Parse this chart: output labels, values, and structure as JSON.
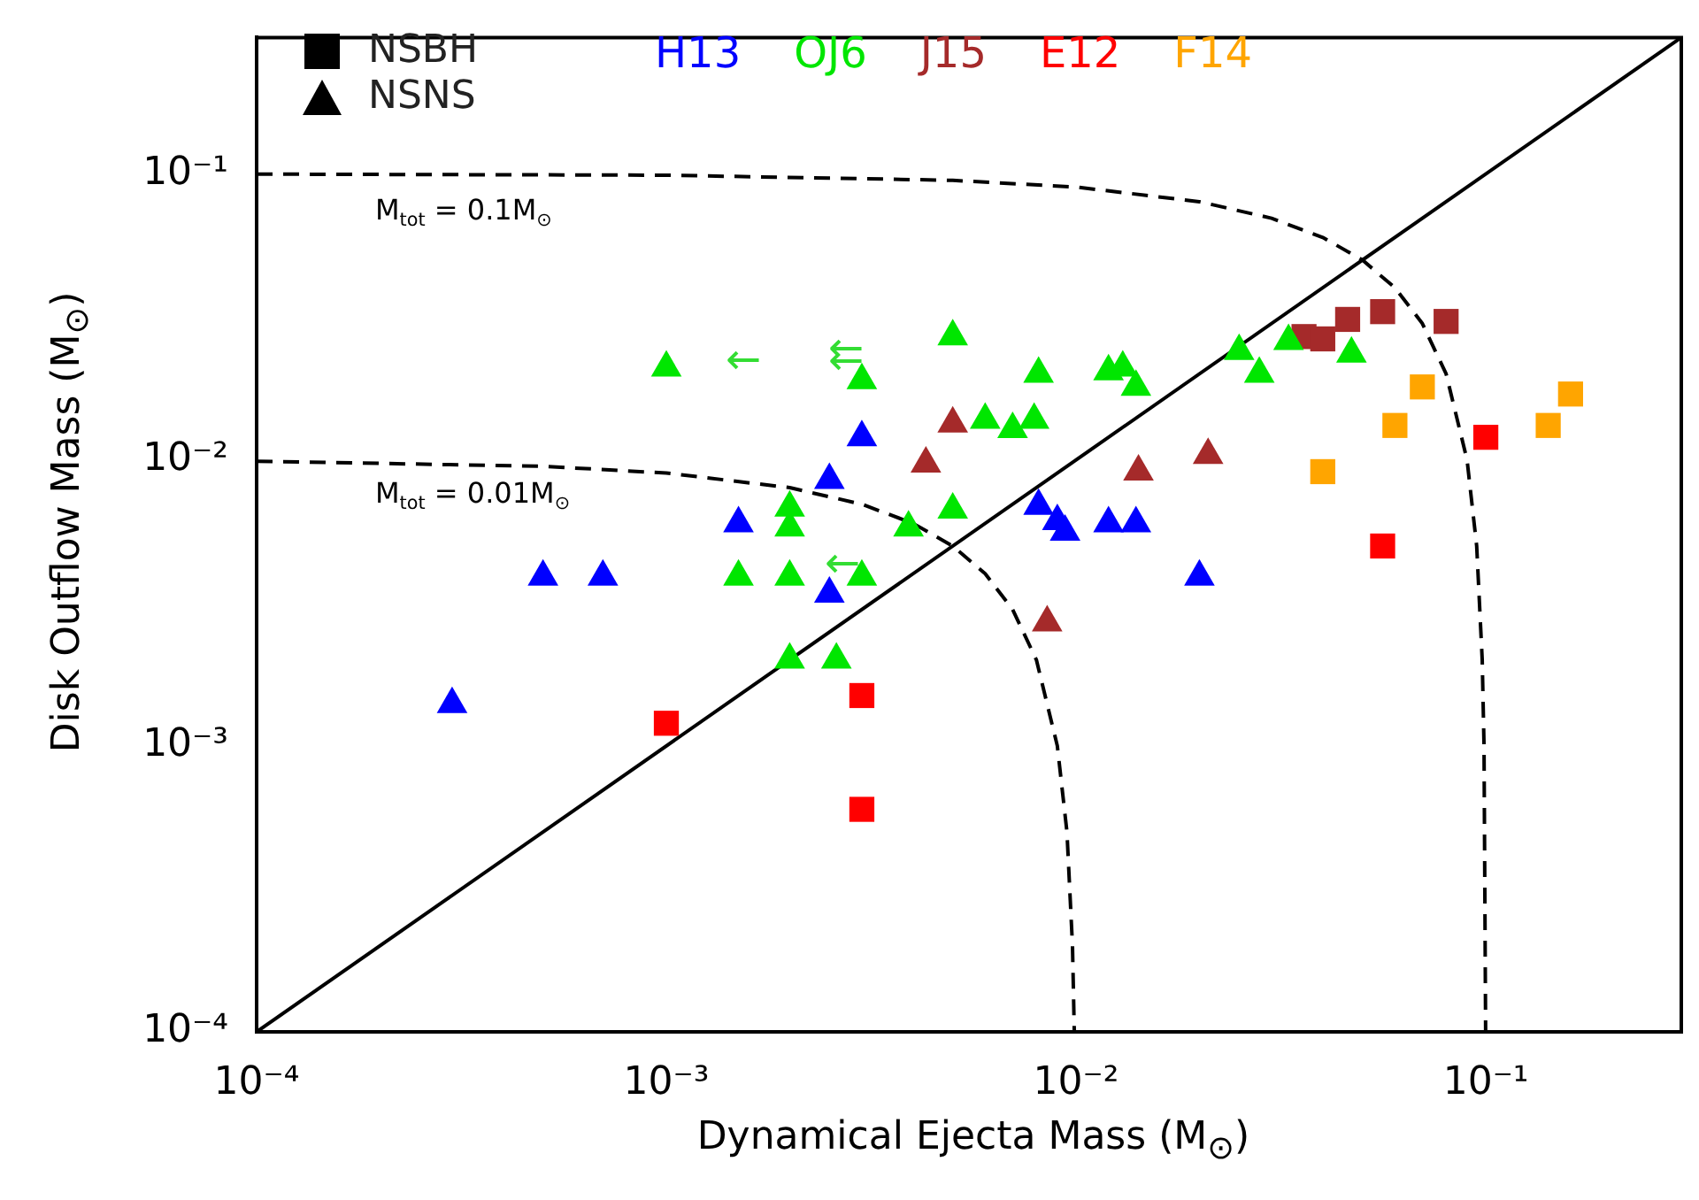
{
  "chart_data": {
    "type": "scatter",
    "xlabel": "Dynamical Ejecta Mass (M$_{⊙}$)",
    "ylabel": "Disk Outflow Mass (M$_{⊙}$)",
    "log": "xy",
    "legend": "top",
    "xlim": [
      0.0001,
      0.3
    ],
    "ylim": [
      0.0001,
      0.3
    ],
    "xticks": [
      {
        "value": 0.0001,
        "label": "10⁻⁴"
      },
      {
        "value": 0.001,
        "label": "10⁻³"
      },
      {
        "value": 0.01,
        "label": "10⁻²"
      },
      {
        "value": 0.1,
        "label": "10⁻¹"
      }
    ],
    "yticks": [
      {
        "value": 0.0001,
        "label": "10⁻⁴"
      },
      {
        "value": 0.001,
        "label": "10⁻³"
      },
      {
        "value": 0.01,
        "label": "10⁻²"
      },
      {
        "value": 0.1,
        "label": "10⁻¹"
      }
    ],
    "series": [
      {
        "name": "H13",
        "color": "#0000ff",
        "marker": "triangle",
        "x": [
          0.0003,
          0.0005,
          0.0007,
          0.0015,
          0.0025,
          0.003,
          0.0025,
          0.0081,
          0.009,
          0.0094,
          0.012,
          0.014,
          0.02
        ],
        "values": [
          0.0014,
          0.0039,
          0.0039,
          0.006,
          0.0085,
          0.012,
          0.0034,
          0.0069,
          0.0061,
          0.0056,
          0.006,
          0.006,
          0.0039
        ]
      },
      {
        "name": "OJ6",
        "color": "#00e600",
        "marker": "triangle",
        "x": [
          0.001,
          0.003,
          0.005,
          0.002,
          0.002,
          0.0015,
          0.002,
          0.003,
          0.002,
          0.0026,
          0.0039,
          0.005,
          0.0081,
          0.006,
          0.007,
          0.0079,
          0.012,
          0.013,
          0.014,
          0.025,
          0.028,
          0.033,
          0.047
        ],
        "values": [
          0.021,
          0.019,
          0.027,
          0.0068,
          0.0058,
          0.0039,
          0.0039,
          0.0039,
          0.002,
          0.002,
          0.0058,
          0.0067,
          0.02,
          0.0138,
          0.0128,
          0.0138,
          0.0204,
          0.021,
          0.018,
          0.024,
          0.02,
          0.026,
          0.0235
        ]
      },
      {
        "name": "J15",
        "color": "#a52a2a",
        "marker": "triangle",
        "x": [
          0.005,
          0.0043,
          0.0142,
          0.021,
          0.0085
        ],
        "values": [
          0.0134,
          0.0097,
          0.0091,
          0.0104,
          0.0027
        ]
      },
      {
        "color": "#a52a2a",
        "marker": "square",
        "x": [
          0.036,
          0.04,
          0.046,
          0.056,
          0.08
        ],
        "values": [
          0.027,
          0.0265,
          0.031,
          0.033,
          0.0305
        ]
      },
      {
        "name": "E12",
        "color": "#ff0000",
        "marker": "square",
        "x": [
          0.003,
          0.001,
          0.003,
          0.056,
          0.1
        ],
        "values": [
          0.0015,
          0.0012,
          0.0006,
          0.005,
          0.012
        ]
      },
      {
        "name": "F14",
        "color": "#ffa500",
        "marker": "square",
        "x": [
          0.04,
          0.06,
          0.07,
          0.142,
          0.161
        ],
        "values": [
          0.0091,
          0.0132,
          0.018,
          0.0132,
          0.017
        ]
      },
      {
        "type": "line",
        "color": "#000000",
        "line_style": "solid",
        "marker": "none",
        "x": [
          0.0001,
          0.3
        ],
        "values": [
          0.0001,
          0.3
        ]
      },
      {
        "type": "line",
        "color": "#000000",
        "line_style": "dashed",
        "marker": "none",
        "x": [
          0.0001,
          0.001,
          0.005,
          0.01,
          0.02,
          0.03,
          0.04,
          0.05,
          0.06,
          0.07,
          0.08,
          0.09,
          0.095,
          0.098,
          0.099,
          0.0999
        ],
        "values": [
          0.0999,
          0.099,
          0.095,
          0.09,
          0.08,
          0.07,
          0.06,
          0.05,
          0.04,
          0.03,
          0.02,
          0.01,
          0.005,
          0.002,
          0.001,
          0.0001
        ]
      },
      {
        "type": "line",
        "color": "#000000",
        "line_style": "dashed",
        "marker": "none",
        "x": [
          0.0001,
          0.0005,
          0.001,
          0.002,
          0.003,
          0.004,
          0.005,
          0.006,
          0.007,
          0.008,
          0.009,
          0.0095,
          0.0098,
          0.0099
        ],
        "values": [
          0.0099,
          0.0095,
          0.009,
          0.008,
          0.007,
          0.006,
          0.005,
          0.004,
          0.003,
          0.002,
          0.001,
          0.0005,
          0.0002,
          0.0001
        ]
      }
    ],
    "annotations": [
      "NSBH",
      "NSNS",
      "M$_{tot}$ = 0.1M$_{⊙}$",
      "M$_{tot}$ = 0.01M$_{⊙}$",
      "←",
      "⇇",
      "←"
    ]
  }
}
